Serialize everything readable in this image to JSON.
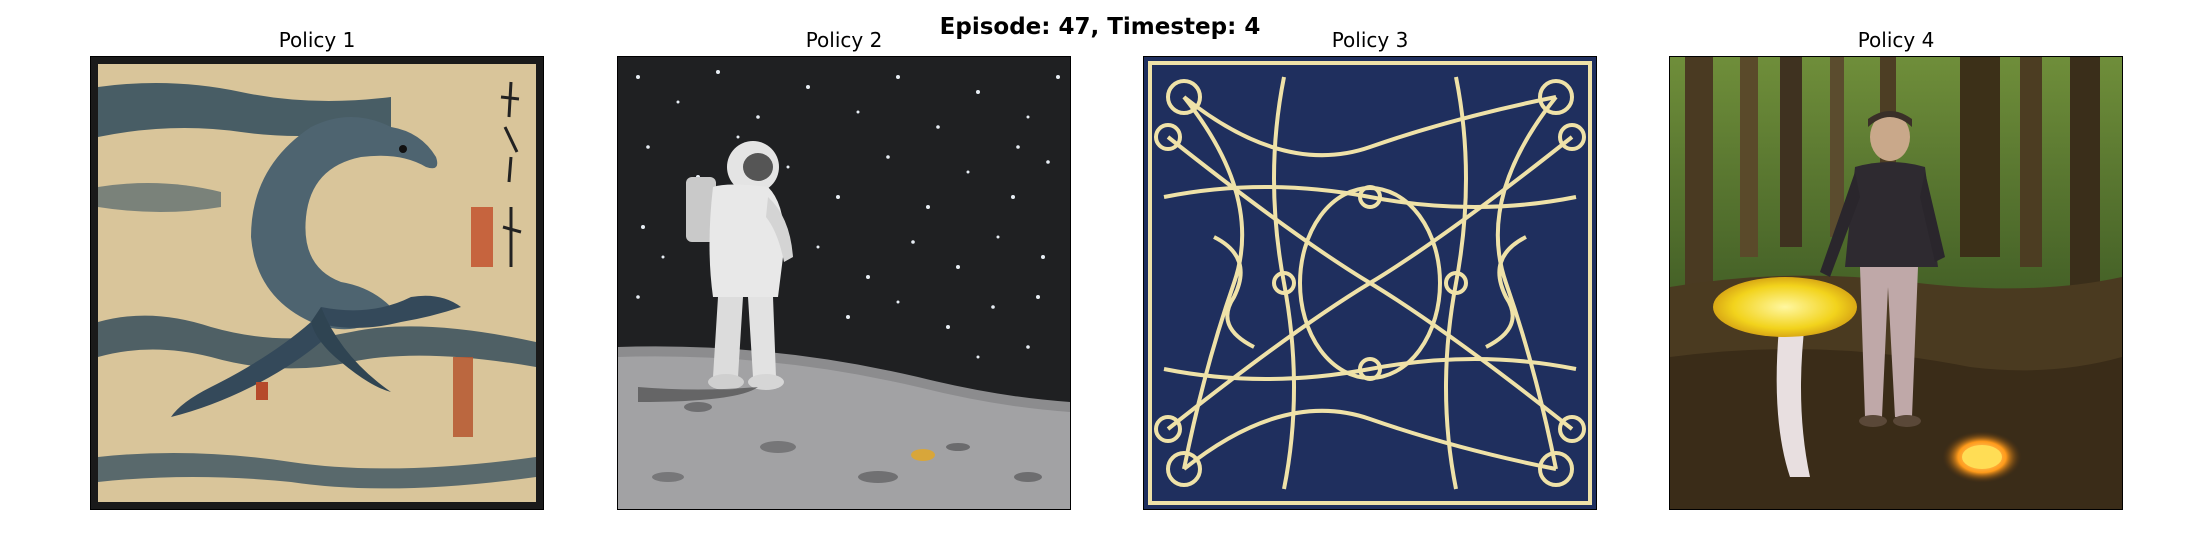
{
  "figure": {
    "suptitle": "Episode: 47, Timestep: 4"
  },
  "panels": [
    {
      "title": "Policy 1",
      "image": "ukiyo-e-dolphin-painting"
    },
    {
      "title": "Policy 2",
      "image": "astronaut-on-moon-starfield"
    },
    {
      "title": "Policy 3",
      "image": "knot-pattern-embroidery"
    },
    {
      "title": "Policy 4",
      "image": "person-with-glowing-mushroom-forest"
    }
  ]
}
